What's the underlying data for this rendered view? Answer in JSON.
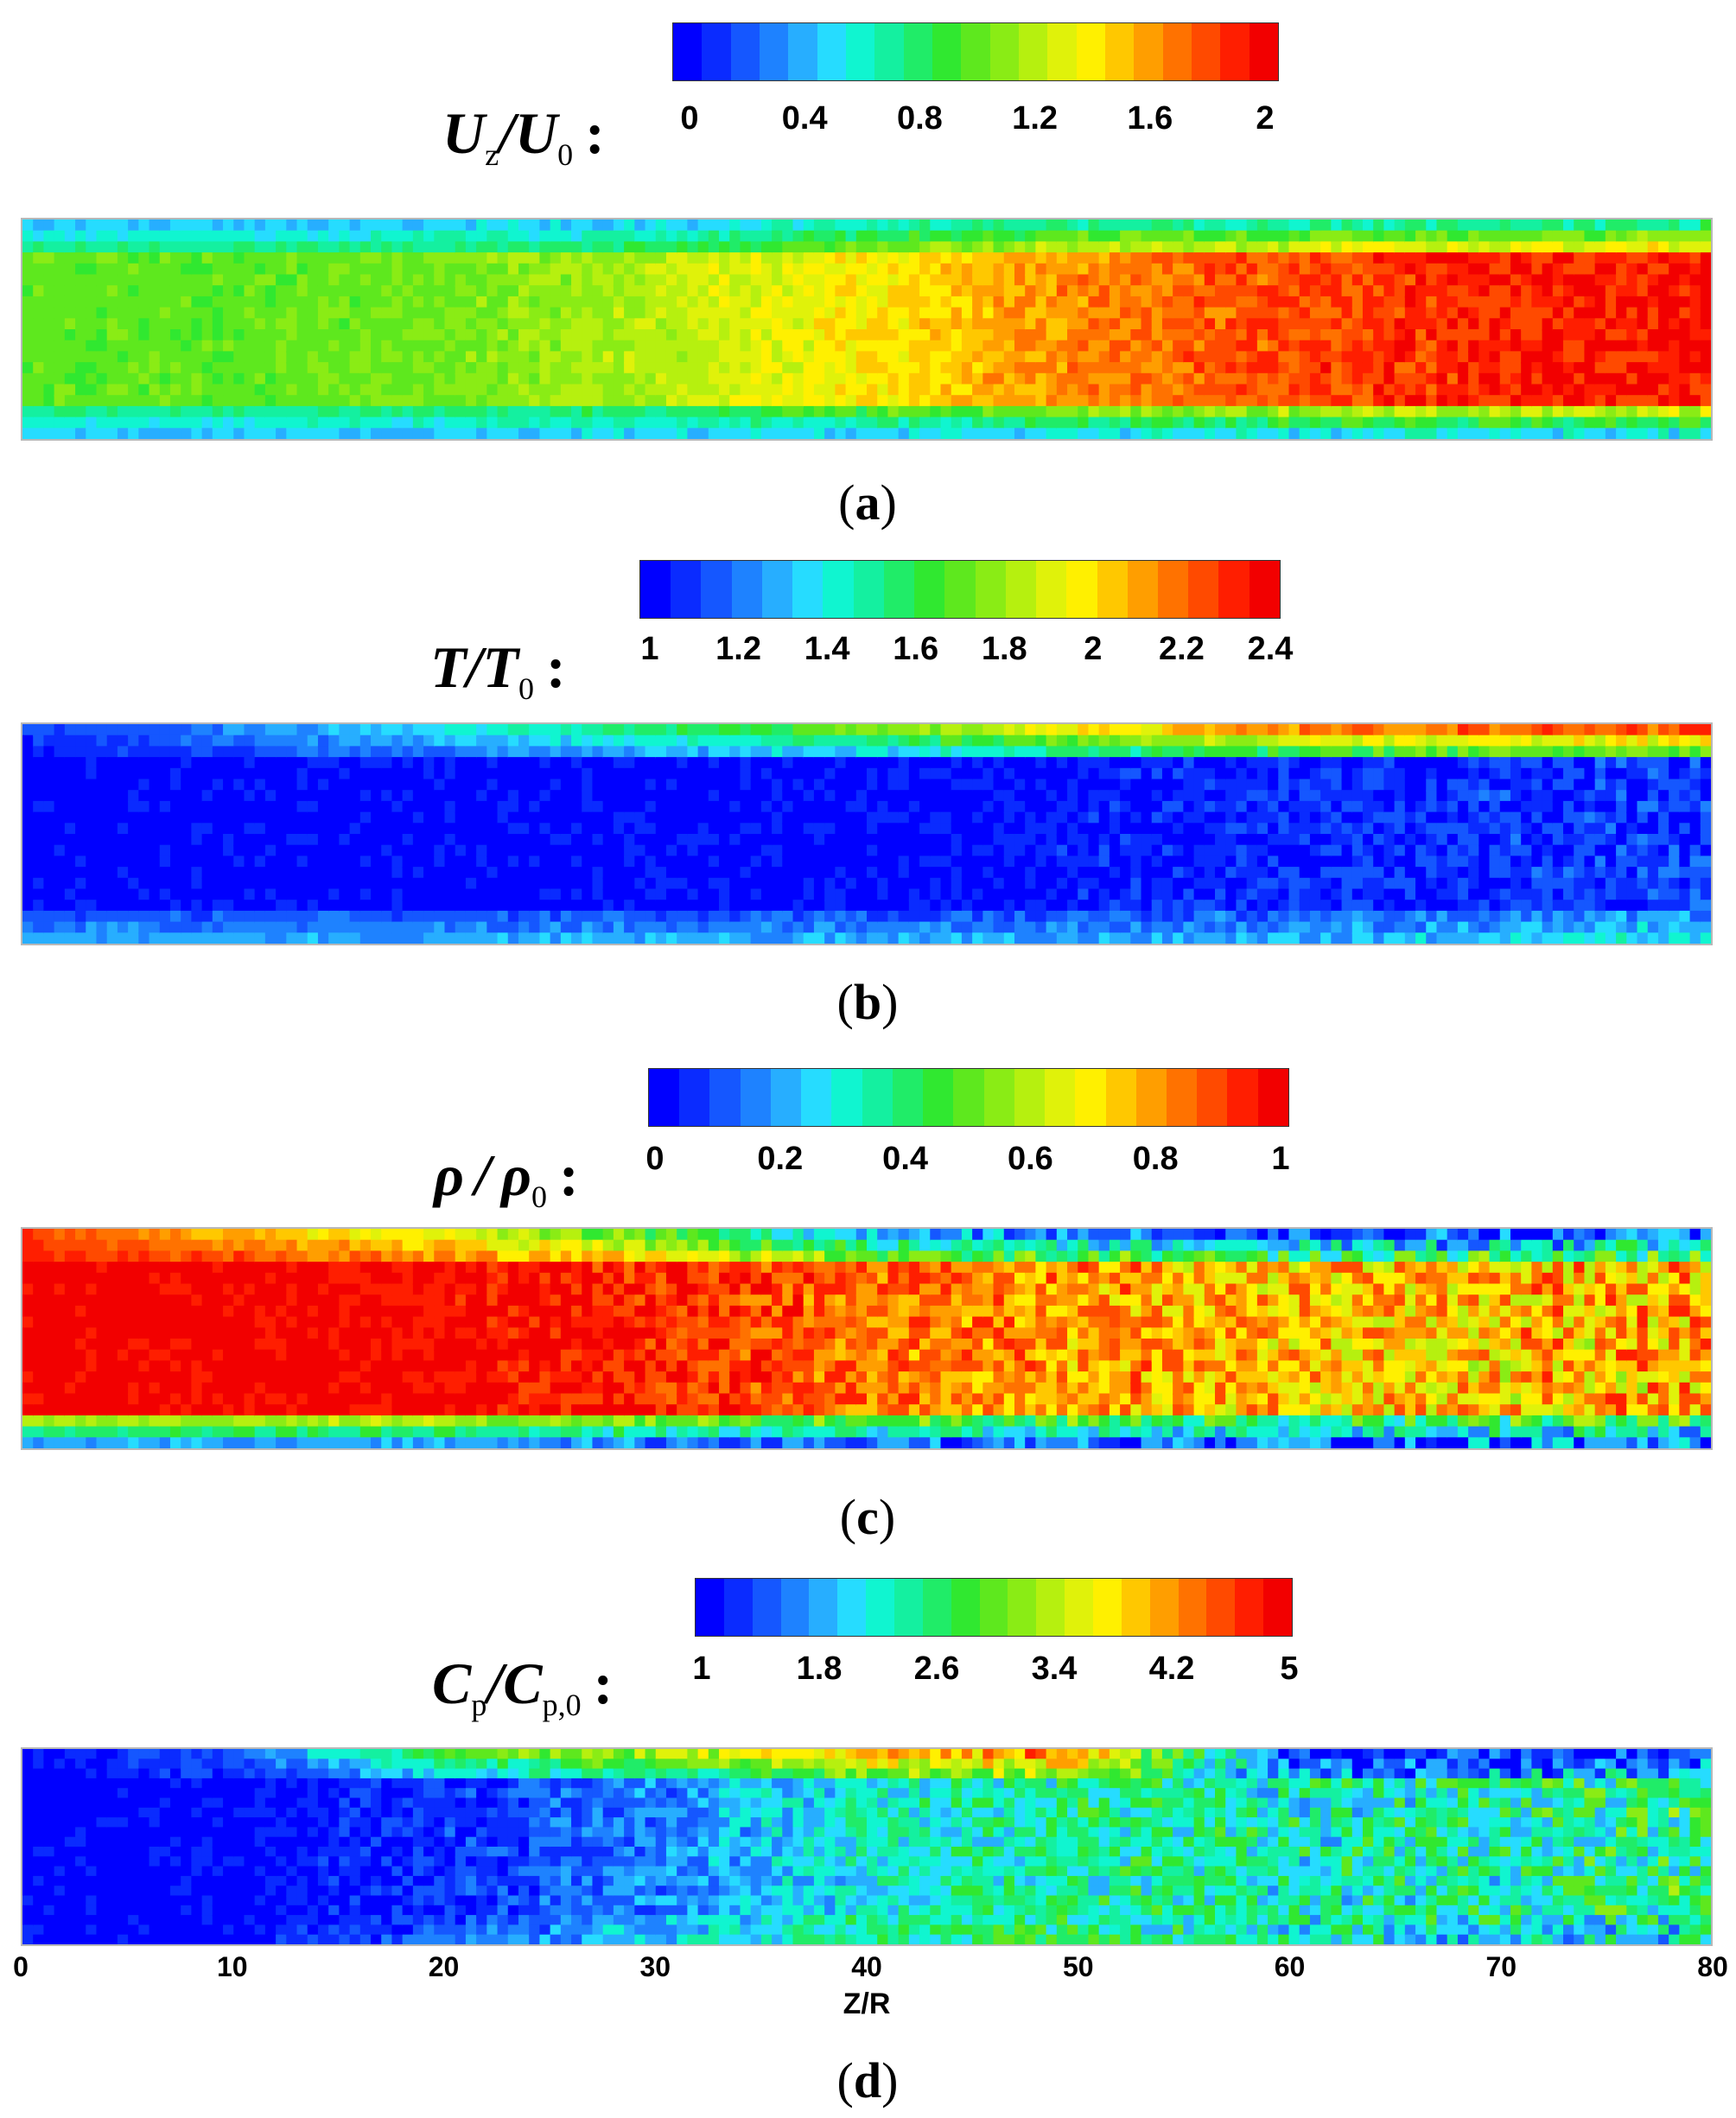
{
  "chart_data": [
    {
      "type": "heatmap",
      "panel": "(a)",
      "colorbar_label": "Uz/U0",
      "colorbar_ticks": [
        "0",
        "0.4",
        "0.8",
        "1.2",
        "1.6",
        "2"
      ],
      "colorbar_range": [
        0,
        2
      ],
      "x_range": [
        0,
        80
      ],
      "field_profile": [
        {
          "x": 0,
          "core": 1.0,
          "top_wall": 0.4,
          "bottom_wall": 0.4
        },
        {
          "x": 10,
          "core": 1.0,
          "top_wall": 0.4,
          "bottom_wall": 0.4
        },
        {
          "x": 20,
          "core": 1.05,
          "top_wall": 0.4,
          "bottom_wall": 0.4
        },
        {
          "x": 30,
          "core": 1.2,
          "top_wall": 0.4,
          "bottom_wall": 0.4
        },
        {
          "x": 40,
          "core": 1.4,
          "top_wall": 0.6,
          "bottom_wall": 0.4
        },
        {
          "x": 50,
          "core": 1.65,
          "top_wall": 0.6,
          "bottom_wall": 0.4
        },
        {
          "x": 60,
          "core": 1.8,
          "top_wall": 0.6,
          "bottom_wall": 0.4
        },
        {
          "x": 70,
          "core": 1.9,
          "top_wall": 0.6,
          "bottom_wall": 0.4
        },
        {
          "x": 80,
          "core": 1.95,
          "top_wall": 0.6,
          "bottom_wall": 0.4
        }
      ]
    },
    {
      "type": "heatmap",
      "panel": "(b)",
      "colorbar_label": "T/T0",
      "colorbar_ticks": [
        "1",
        "1.2",
        "1.4",
        "1.6",
        "1.8",
        "2",
        "2.2",
        "2.4"
      ],
      "colorbar_range": [
        1,
        2.4
      ],
      "x_range": [
        0,
        80
      ],
      "field_profile": [
        {
          "x": 0,
          "core": 1.0,
          "top_wall": 1.1,
          "bottom_wall": 1.3
        },
        {
          "x": 20,
          "core": 1.0,
          "top_wall": 1.4,
          "bottom_wall": 1.3
        },
        {
          "x": 40,
          "core": 1.0,
          "top_wall": 1.8,
          "bottom_wall": 1.3
        },
        {
          "x": 60,
          "core": 1.05,
          "top_wall": 2.3,
          "bottom_wall": 1.3
        },
        {
          "x": 80,
          "core": 1.1,
          "top_wall": 2.4,
          "bottom_wall": 1.4
        }
      ]
    },
    {
      "type": "heatmap",
      "panel": "(c)",
      "colorbar_label": "ρ/ρ0",
      "colorbar_ticks": [
        "0",
        "0.2",
        "0.4",
        "0.6",
        "0.8",
        "1"
      ],
      "colorbar_range": [
        0,
        1
      ],
      "x_range": [
        0,
        80
      ],
      "field_profile": [
        {
          "x": 0,
          "core": 1.0,
          "top_wall": 0.9,
          "bottom_wall": 0.1
        },
        {
          "x": 20,
          "core": 1.0,
          "top_wall": 0.6,
          "bottom_wall": 0.1
        },
        {
          "x": 30,
          "core": 0.95,
          "top_wall": 0.4,
          "bottom_wall": 0.05
        },
        {
          "x": 40,
          "core": 0.85,
          "top_wall": 0.15,
          "bottom_wall": 0.05
        },
        {
          "x": 50,
          "core": 0.8,
          "top_wall": 0.05,
          "bottom_wall": 0.05
        },
        {
          "x": 60,
          "core": 0.75,
          "top_wall": 0.0,
          "bottom_wall": 0.05
        },
        {
          "x": 70,
          "core": 0.75,
          "top_wall": 0.0,
          "bottom_wall": 0.05
        },
        {
          "x": 80,
          "core": 0.78,
          "top_wall": 0.0,
          "bottom_wall": 0.05
        }
      ]
    },
    {
      "type": "heatmap",
      "panel": "(d)",
      "colorbar_label": "Cp/Cp,0",
      "colorbar_ticks": [
        "1",
        "1.8",
        "2.6",
        "3.4",
        "4.2",
        "5"
      ],
      "colorbar_range": [
        1,
        5
      ],
      "x_range": [
        0,
        80
      ],
      "xlabel": "Z/R",
      "xticks": [
        "0",
        "10",
        "20",
        "30",
        "40",
        "50",
        "60",
        "70",
        "80"
      ],
      "field_profile": [
        {
          "x": 0,
          "core": 1.0,
          "top_wall": 1.0,
          "bottom_wall": 1.0
        },
        {
          "x": 10,
          "core": 1.0,
          "top_wall": 1.5,
          "bottom_wall": 1.0
        },
        {
          "x": 20,
          "core": 1.2,
          "top_wall": 3.0,
          "bottom_wall": 1.5
        },
        {
          "x": 30,
          "core": 1.6,
          "top_wall": 3.5,
          "bottom_wall": 2.0
        },
        {
          "x": 40,
          "core": 2.2,
          "top_wall": 4.2,
          "bottom_wall": 2.5
        },
        {
          "x": 50,
          "core": 2.4,
          "top_wall": 4.5,
          "bottom_wall": 2.6
        },
        {
          "x": 60,
          "core": 2.3,
          "top_wall": 1.0,
          "bottom_wall": 2.2
        },
        {
          "x": 70,
          "core": 2.4,
          "top_wall": 1.0,
          "bottom_wall": 2.0
        },
        {
          "x": 80,
          "core": 2.6,
          "top_wall": 1.0,
          "bottom_wall": 2.0
        }
      ]
    }
  ],
  "labels": {
    "a": {
      "sym": "U",
      "sub": "z",
      "sym2": "U",
      "sub2": "0",
      "colon": ":",
      "letter": "a"
    },
    "b": {
      "sym": "T",
      "sub": "",
      "sym2": "T",
      "sub2": "0",
      "colon": ":",
      "letter": "b"
    },
    "c": {
      "sym": "ρ",
      "sub": "",
      "sym2": "ρ",
      "sub2": "0",
      "colon": ":",
      "letter": "c"
    },
    "d": {
      "sym": "C",
      "sub": "p",
      "sym2": "C",
      "sub2": "p,0",
      "colon": ":",
      "letter": "d"
    }
  },
  "paren_open": "(",
  "paren_close": ")",
  "slash": "/",
  "colormap": [
    "#0000ff",
    "#0a2bff",
    "#1557ff",
    "#1e82ff",
    "#27aeff",
    "#26dcff",
    "#10f5d0",
    "#14f0a0",
    "#20ec68",
    "#30e830",
    "#5ee81e",
    "#8aec15",
    "#b6f00f",
    "#e0f20a",
    "#fff000",
    "#ffc800",
    "#ff9e00",
    "#ff7200",
    "#ff4a00",
    "#ff1e00",
    "#f20000"
  ]
}
